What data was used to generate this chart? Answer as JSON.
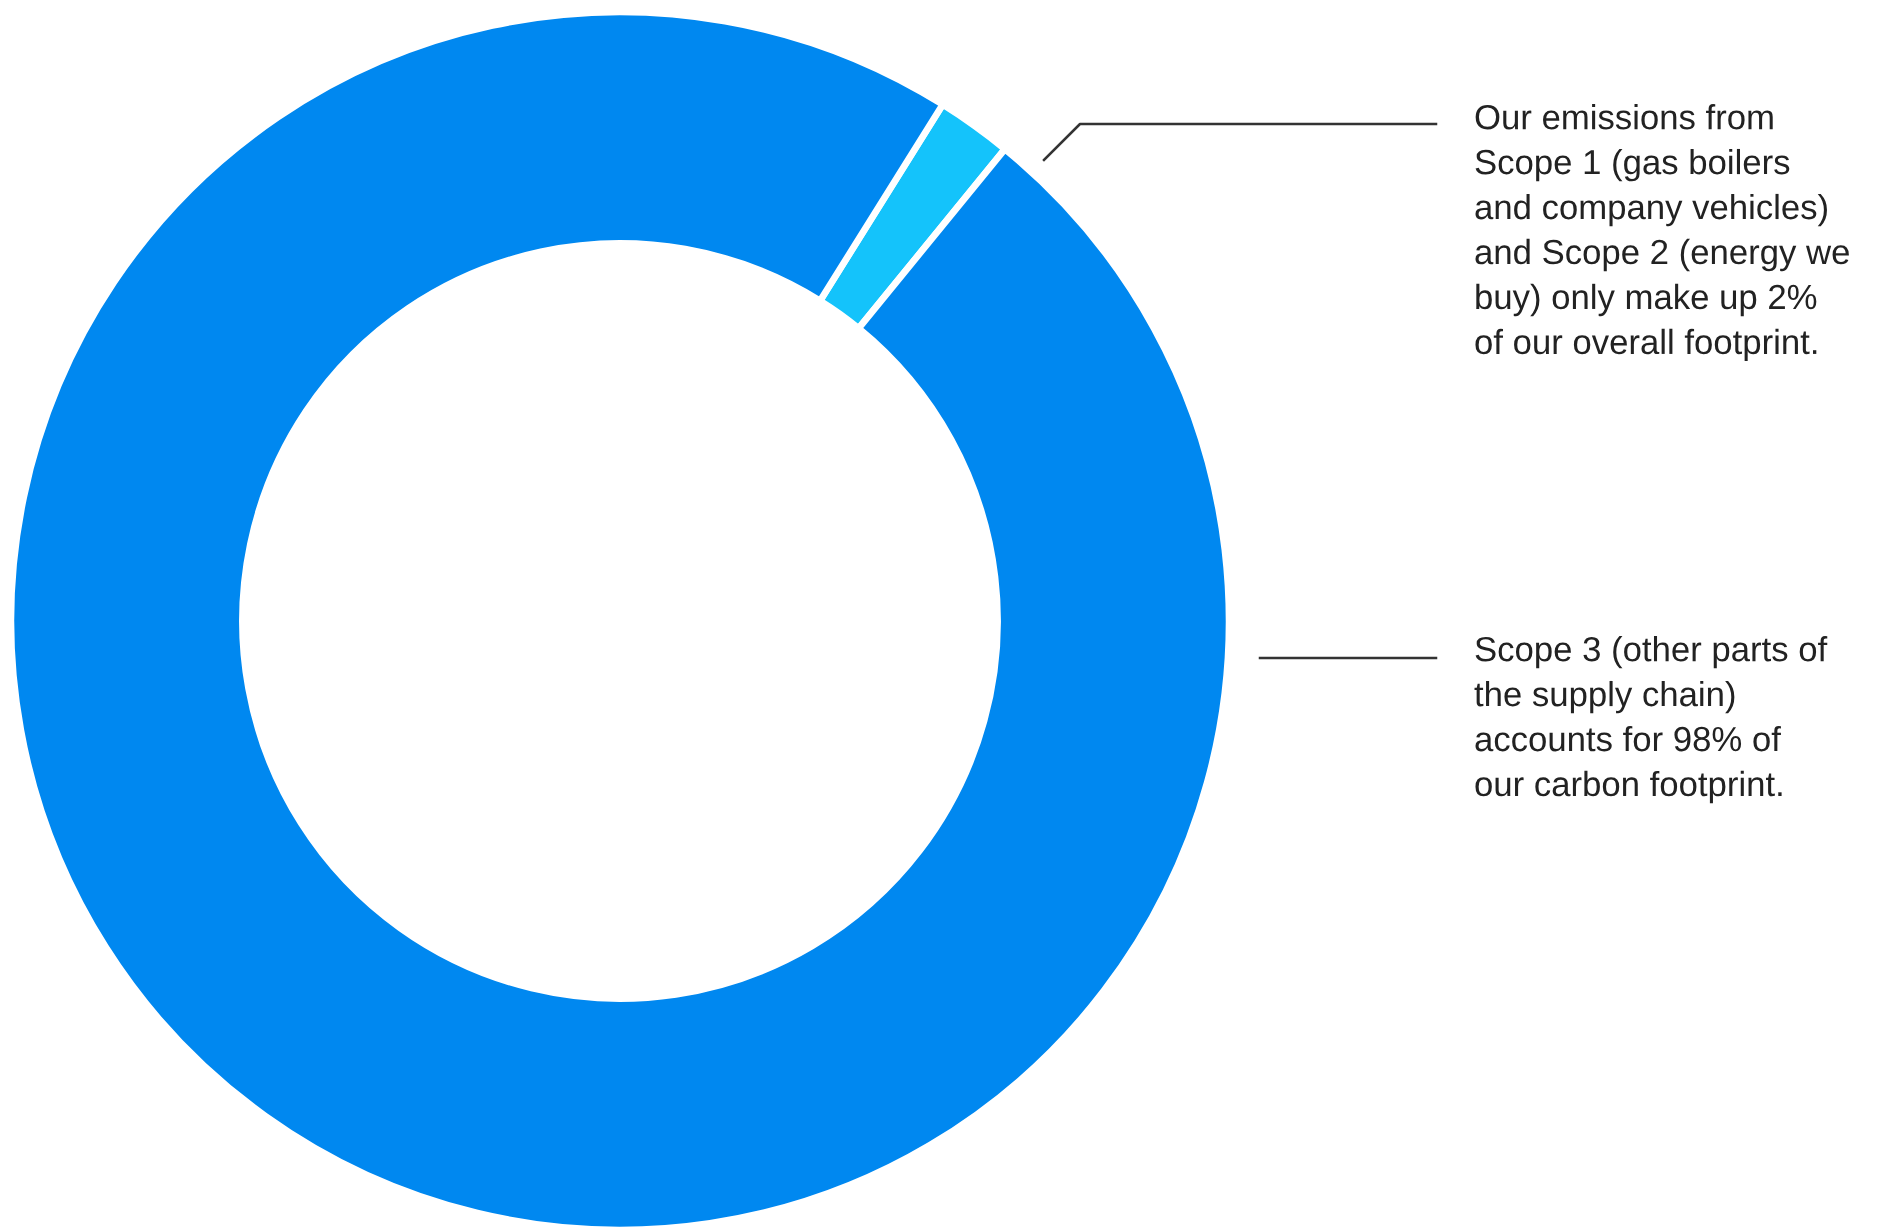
{
  "chart_data": {
    "type": "donut",
    "categories": [
      null,
      null
    ],
    "values": [
      2,
      98
    ],
    "colors": [
      "#14c3fb",
      "#0088f0"
    ],
    "annotations": [
      "Our emissions from\nScope 1 (gas boilers\nand company vehicles)\nand Scope 2 (energy we\nbuy) only make up 2%\nof our overall footprint.",
      "Scope 3 (other parts of\nthe supply chain)\naccounts for 98% of\nour carbon footprint."
    ]
  }
}
